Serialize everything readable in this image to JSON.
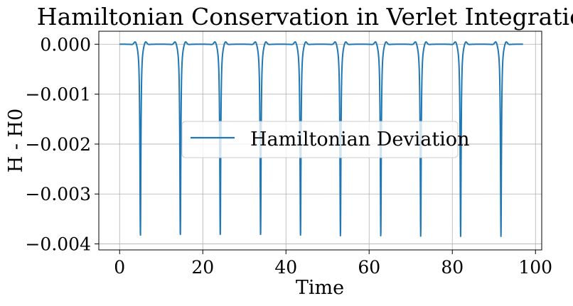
{
  "chart_data": {
    "type": "line",
    "title": "Hamiltonian Conservation in Verlet Integration",
    "xlabel": "Time",
    "ylabel": "H - H0",
    "xlim": [
      -5,
      101.5
    ],
    "ylim": [
      -0.00412,
      0.00026
    ],
    "xticks": [
      0,
      20,
      40,
      60,
      80,
      100
    ],
    "xtick_labels": [
      "0",
      "20",
      "40",
      "60",
      "80",
      "100"
    ],
    "yticks": [
      0.0,
      -0.001,
      -0.002,
      -0.003,
      -0.004
    ],
    "ytick_labels": [
      "0.000",
      "−0.001",
      "−0.002",
      "−0.003",
      "−0.004"
    ],
    "grid": true,
    "legend_position": "center",
    "series": [
      {
        "name": "Hamiltonian Deviation",
        "color": "#1f77b4",
        "x_range": [
          0,
          97
        ],
        "baseline": 0.0,
        "spike_minimum": -0.00385,
        "spike_times": [
          5.0,
          14.6,
          24.2,
          33.9,
          43.5,
          53.1,
          62.8,
          72.4,
          82.0,
          91.7
        ],
        "shoulder_peak": 8e-05
      }
    ]
  }
}
